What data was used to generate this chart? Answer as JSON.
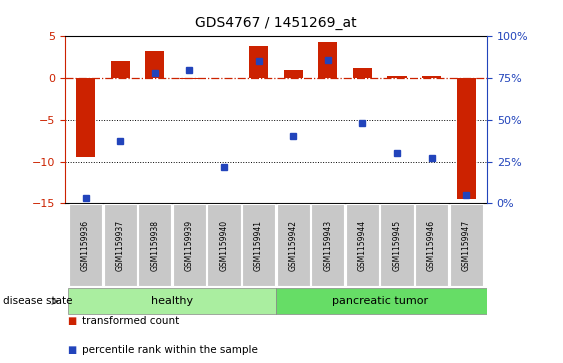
{
  "title": "GDS4767 / 1451269_at",
  "categories": [
    "GSM1159936",
    "GSM1159937",
    "GSM1159938",
    "GSM1159939",
    "GSM1159940",
    "GSM1159941",
    "GSM1159942",
    "GSM1159943",
    "GSM1159944",
    "GSM1159945",
    "GSM1159946",
    "GSM1159947"
  ],
  "red_values": [
    -9.5,
    2.0,
    3.2,
    -0.1,
    -0.05,
    3.8,
    1.0,
    4.3,
    1.2,
    0.3,
    0.3,
    -14.5
  ],
  "blue_values_pct": [
    3,
    37,
    78,
    80,
    22,
    85,
    40,
    86,
    48,
    30,
    27,
    5
  ],
  "healthy_count": 6,
  "tumor_count": 6,
  "red_ylim": [
    -15,
    5
  ],
  "blue_ylim": [
    0,
    100
  ],
  "red_yticks": [
    -15,
    -10,
    -5,
    0,
    5
  ],
  "blue_yticks": [
    0,
    25,
    50,
    75,
    100
  ],
  "blue_ytick_labels": [
    "0%",
    "25%",
    "50%",
    "75%",
    "100%"
  ],
  "red_color": "#cc2200",
  "blue_color": "#2244bb",
  "healthy_color": "#aaeea0",
  "tumor_color": "#66dd66",
  "label_bg_color": "#c8c8c8",
  "dotted_lines": [
    -5,
    -10
  ],
  "disease_state_label": "disease state",
  "healthy_label": "healthy",
  "tumor_label": "pancreatic tumor",
  "legend1": "transformed count",
  "legend2": "percentile rank within the sample",
  "bar_width": 0.55
}
